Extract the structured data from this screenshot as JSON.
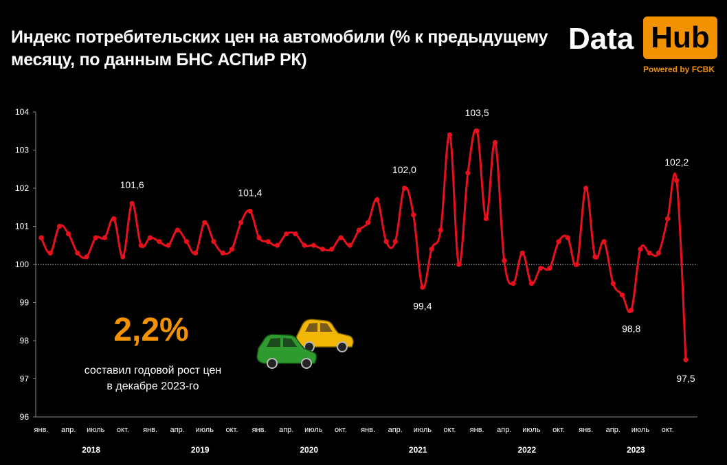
{
  "header": {
    "title": "Индекс потребительских цен на автомобили (% к предыдущему месяцу, по данным БНС АСПиР РК)"
  },
  "logo": {
    "data_text": "Data",
    "hub_text": "Hub",
    "powered_text": "Powered by FCBK",
    "accent_color": "#f39200"
  },
  "callout": {
    "value": "2,2%",
    "text_line1": "составил годовой рост цен",
    "text_line2": "в декабре 2023-го",
    "icon": "cars-icon"
  },
  "chart_data": {
    "type": "line",
    "ylim": [
      96,
      104
    ],
    "yticks": [
      96,
      97,
      98,
      99,
      100,
      101,
      102,
      103,
      104
    ],
    "reference_line": 100,
    "line_color": "#e8101c",
    "month_labels": [
      "янв.",
      "апр.",
      "июль",
      "окт."
    ],
    "years": [
      "2018",
      "2019",
      "2020",
      "2021",
      "2022",
      "2023"
    ],
    "values": [
      100.7,
      100.3,
      101.0,
      100.8,
      100.3,
      100.2,
      100.7,
      100.7,
      101.2,
      100.2,
      101.6,
      100.5,
      100.7,
      100.6,
      100.5,
      100.9,
      100.6,
      100.3,
      101.1,
      100.6,
      100.3,
      100.4,
      101.1,
      101.4,
      100.7,
      100.6,
      100.5,
      100.8,
      100.8,
      100.5,
      100.5,
      100.4,
      100.4,
      100.7,
      100.5,
      100.9,
      101.1,
      101.7,
      100.6,
      100.6,
      102.0,
      101.3,
      99.4,
      100.4,
      100.9,
      103.4,
      100.0,
      102.4,
      103.5,
      101.2,
      103.2,
      100.1,
      99.5,
      100.3,
      99.5,
      99.9,
      99.9,
      100.6,
      100.7,
      100.0,
      102.0,
      100.2,
      100.6,
      99.5,
      99.2,
      98.8,
      100.4,
      100.3,
      100.3,
      101.2,
      102.2,
      97.5
    ],
    "annotations": [
      {
        "index": 10,
        "label": "101,6",
        "pos": "above"
      },
      {
        "index": 23,
        "label": "101,4",
        "pos": "above"
      },
      {
        "index": 40,
        "label": "102,0",
        "pos": "above"
      },
      {
        "index": 42,
        "label": "99,4",
        "pos": "below"
      },
      {
        "index": 48,
        "label": "103,5",
        "pos": "above"
      },
      {
        "index": 65,
        "label": "98,8",
        "pos": "below"
      },
      {
        "index": 70,
        "label": "102,2",
        "pos": "above"
      },
      {
        "index": 71,
        "label": "97,5",
        "pos": "below"
      }
    ]
  }
}
